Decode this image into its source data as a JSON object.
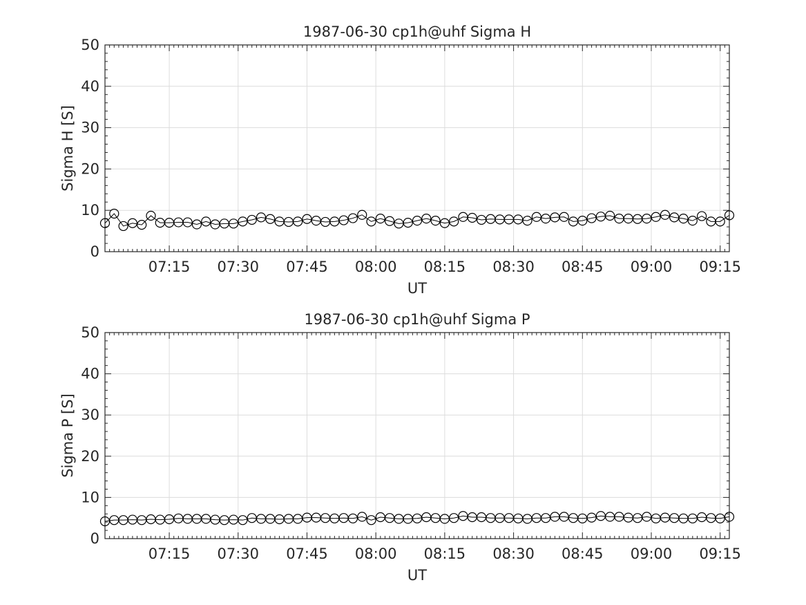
{
  "chart_data": [
    {
      "type": "line",
      "title": "1987-06-30  cp1h@uhf Sigma H",
      "xlabel": "UT",
      "ylabel": "Sigma H [S]",
      "ylim": [
        0,
        50
      ],
      "yticks": [
        0,
        10,
        20,
        30,
        40,
        50
      ],
      "xlim": [
        "07:01",
        "09:17"
      ],
      "xticks": [
        "07:15",
        "07:30",
        "07:45",
        "08:00",
        "08:15",
        "08:30",
        "08:45",
        "09:00",
        "09:15"
      ],
      "grid": true,
      "marker": "open-circle",
      "series": [
        {
          "x": [
            "07:01",
            "07:03",
            "07:05",
            "07:07",
            "07:09",
            "07:11",
            "07:13",
            "07:15",
            "07:17",
            "07:19",
            "07:21",
            "07:23",
            "07:25",
            "07:27",
            "07:29",
            "07:31",
            "07:33",
            "07:35",
            "07:37",
            "07:39",
            "07:41",
            "07:43",
            "07:45",
            "07:47",
            "07:49",
            "07:51",
            "07:53",
            "07:55",
            "07:57",
            "07:59",
            "08:01",
            "08:03",
            "08:05",
            "08:07",
            "08:09",
            "08:11",
            "08:13",
            "08:15",
            "08:17",
            "08:19",
            "08:21",
            "08:23",
            "08:25",
            "08:27",
            "08:29",
            "08:31",
            "08:33",
            "08:35",
            "08:37",
            "08:39",
            "08:41",
            "08:43",
            "08:45",
            "08:47",
            "08:49",
            "08:51",
            "08:53",
            "08:55",
            "08:57",
            "08:59",
            "09:01",
            "09:03",
            "09:05",
            "09:07",
            "09:09",
            "09:11",
            "09:13",
            "09:15",
            "09:17"
          ],
          "values": [
            6.9,
            9.2,
            6.2,
            6.9,
            6.5,
            8.7,
            7.0,
            7.0,
            7.1,
            7.1,
            6.6,
            7.3,
            6.6,
            6.8,
            6.8,
            7.3,
            7.7,
            8.3,
            7.9,
            7.3,
            7.2,
            7.3,
            7.9,
            7.5,
            7.2,
            7.3,
            7.6,
            8.1,
            8.9,
            7.3,
            8.0,
            7.4,
            6.8,
            7.0,
            7.5,
            8.0,
            7.5,
            6.9,
            7.3,
            8.4,
            8.2,
            7.7,
            7.9,
            7.8,
            7.8,
            7.8,
            7.5,
            8.4,
            8.0,
            8.3,
            8.4,
            7.3,
            7.5,
            8.1,
            8.5,
            8.7,
            8.0,
            8.0,
            7.9,
            8.0,
            8.4,
            8.9,
            8.3,
            8.0,
            7.5,
            8.6,
            7.3,
            7.3,
            8.8
          ]
        }
      ]
    },
    {
      "type": "line",
      "title": "1987-06-30  cp1h@uhf Sigma P",
      "xlabel": "UT",
      "ylabel": "Sigma P [S]",
      "ylim": [
        0,
        50
      ],
      "yticks": [
        0,
        10,
        20,
        30,
        40,
        50
      ],
      "xlim": [
        "07:01",
        "09:17"
      ],
      "xticks": [
        "07:15",
        "07:30",
        "07:45",
        "08:00",
        "08:15",
        "08:30",
        "08:45",
        "09:00",
        "09:15"
      ],
      "grid": true,
      "marker": "open-circle",
      "series": [
        {
          "x": [
            "07:01",
            "07:03",
            "07:05",
            "07:07",
            "07:09",
            "07:11",
            "07:13",
            "07:15",
            "07:17",
            "07:19",
            "07:21",
            "07:23",
            "07:25",
            "07:27",
            "07:29",
            "07:31",
            "07:33",
            "07:35",
            "07:37",
            "07:39",
            "07:41",
            "07:43",
            "07:45",
            "07:47",
            "07:49",
            "07:51",
            "07:53",
            "07:55",
            "07:57",
            "07:59",
            "08:01",
            "08:03",
            "08:05",
            "08:07",
            "08:09",
            "08:11",
            "08:13",
            "08:15",
            "08:17",
            "08:19",
            "08:21",
            "08:23",
            "08:25",
            "08:27",
            "08:29",
            "08:31",
            "08:33",
            "08:35",
            "08:37",
            "08:39",
            "08:41",
            "08:43",
            "08:45",
            "08:47",
            "08:49",
            "08:51",
            "08:53",
            "08:55",
            "08:57",
            "08:59",
            "09:01",
            "09:03",
            "09:05",
            "09:07",
            "09:09",
            "09:11",
            "09:13",
            "09:15",
            "09:17"
          ],
          "values": [
            4.2,
            4.5,
            4.5,
            4.6,
            4.5,
            4.7,
            4.6,
            4.7,
            4.9,
            4.8,
            4.8,
            4.8,
            4.6,
            4.5,
            4.6,
            4.5,
            5.0,
            4.8,
            4.8,
            4.7,
            4.8,
            4.8,
            5.1,
            5.1,
            5.0,
            4.9,
            5.0,
            4.9,
            5.3,
            4.5,
            5.2,
            5.0,
            4.8,
            4.8,
            4.9,
            5.2,
            5.0,
            4.8,
            5.0,
            5.5,
            5.2,
            5.2,
            5.0,
            5.0,
            5.0,
            4.9,
            4.8,
            5.0,
            5.0,
            5.3,
            5.3,
            5.0,
            4.9,
            5.1,
            5.5,
            5.3,
            5.3,
            5.1,
            5.0,
            5.3,
            4.9,
            5.1,
            5.0,
            4.9,
            4.9,
            5.2,
            5.0,
            4.9,
            5.3
          ]
        }
      ]
    }
  ]
}
